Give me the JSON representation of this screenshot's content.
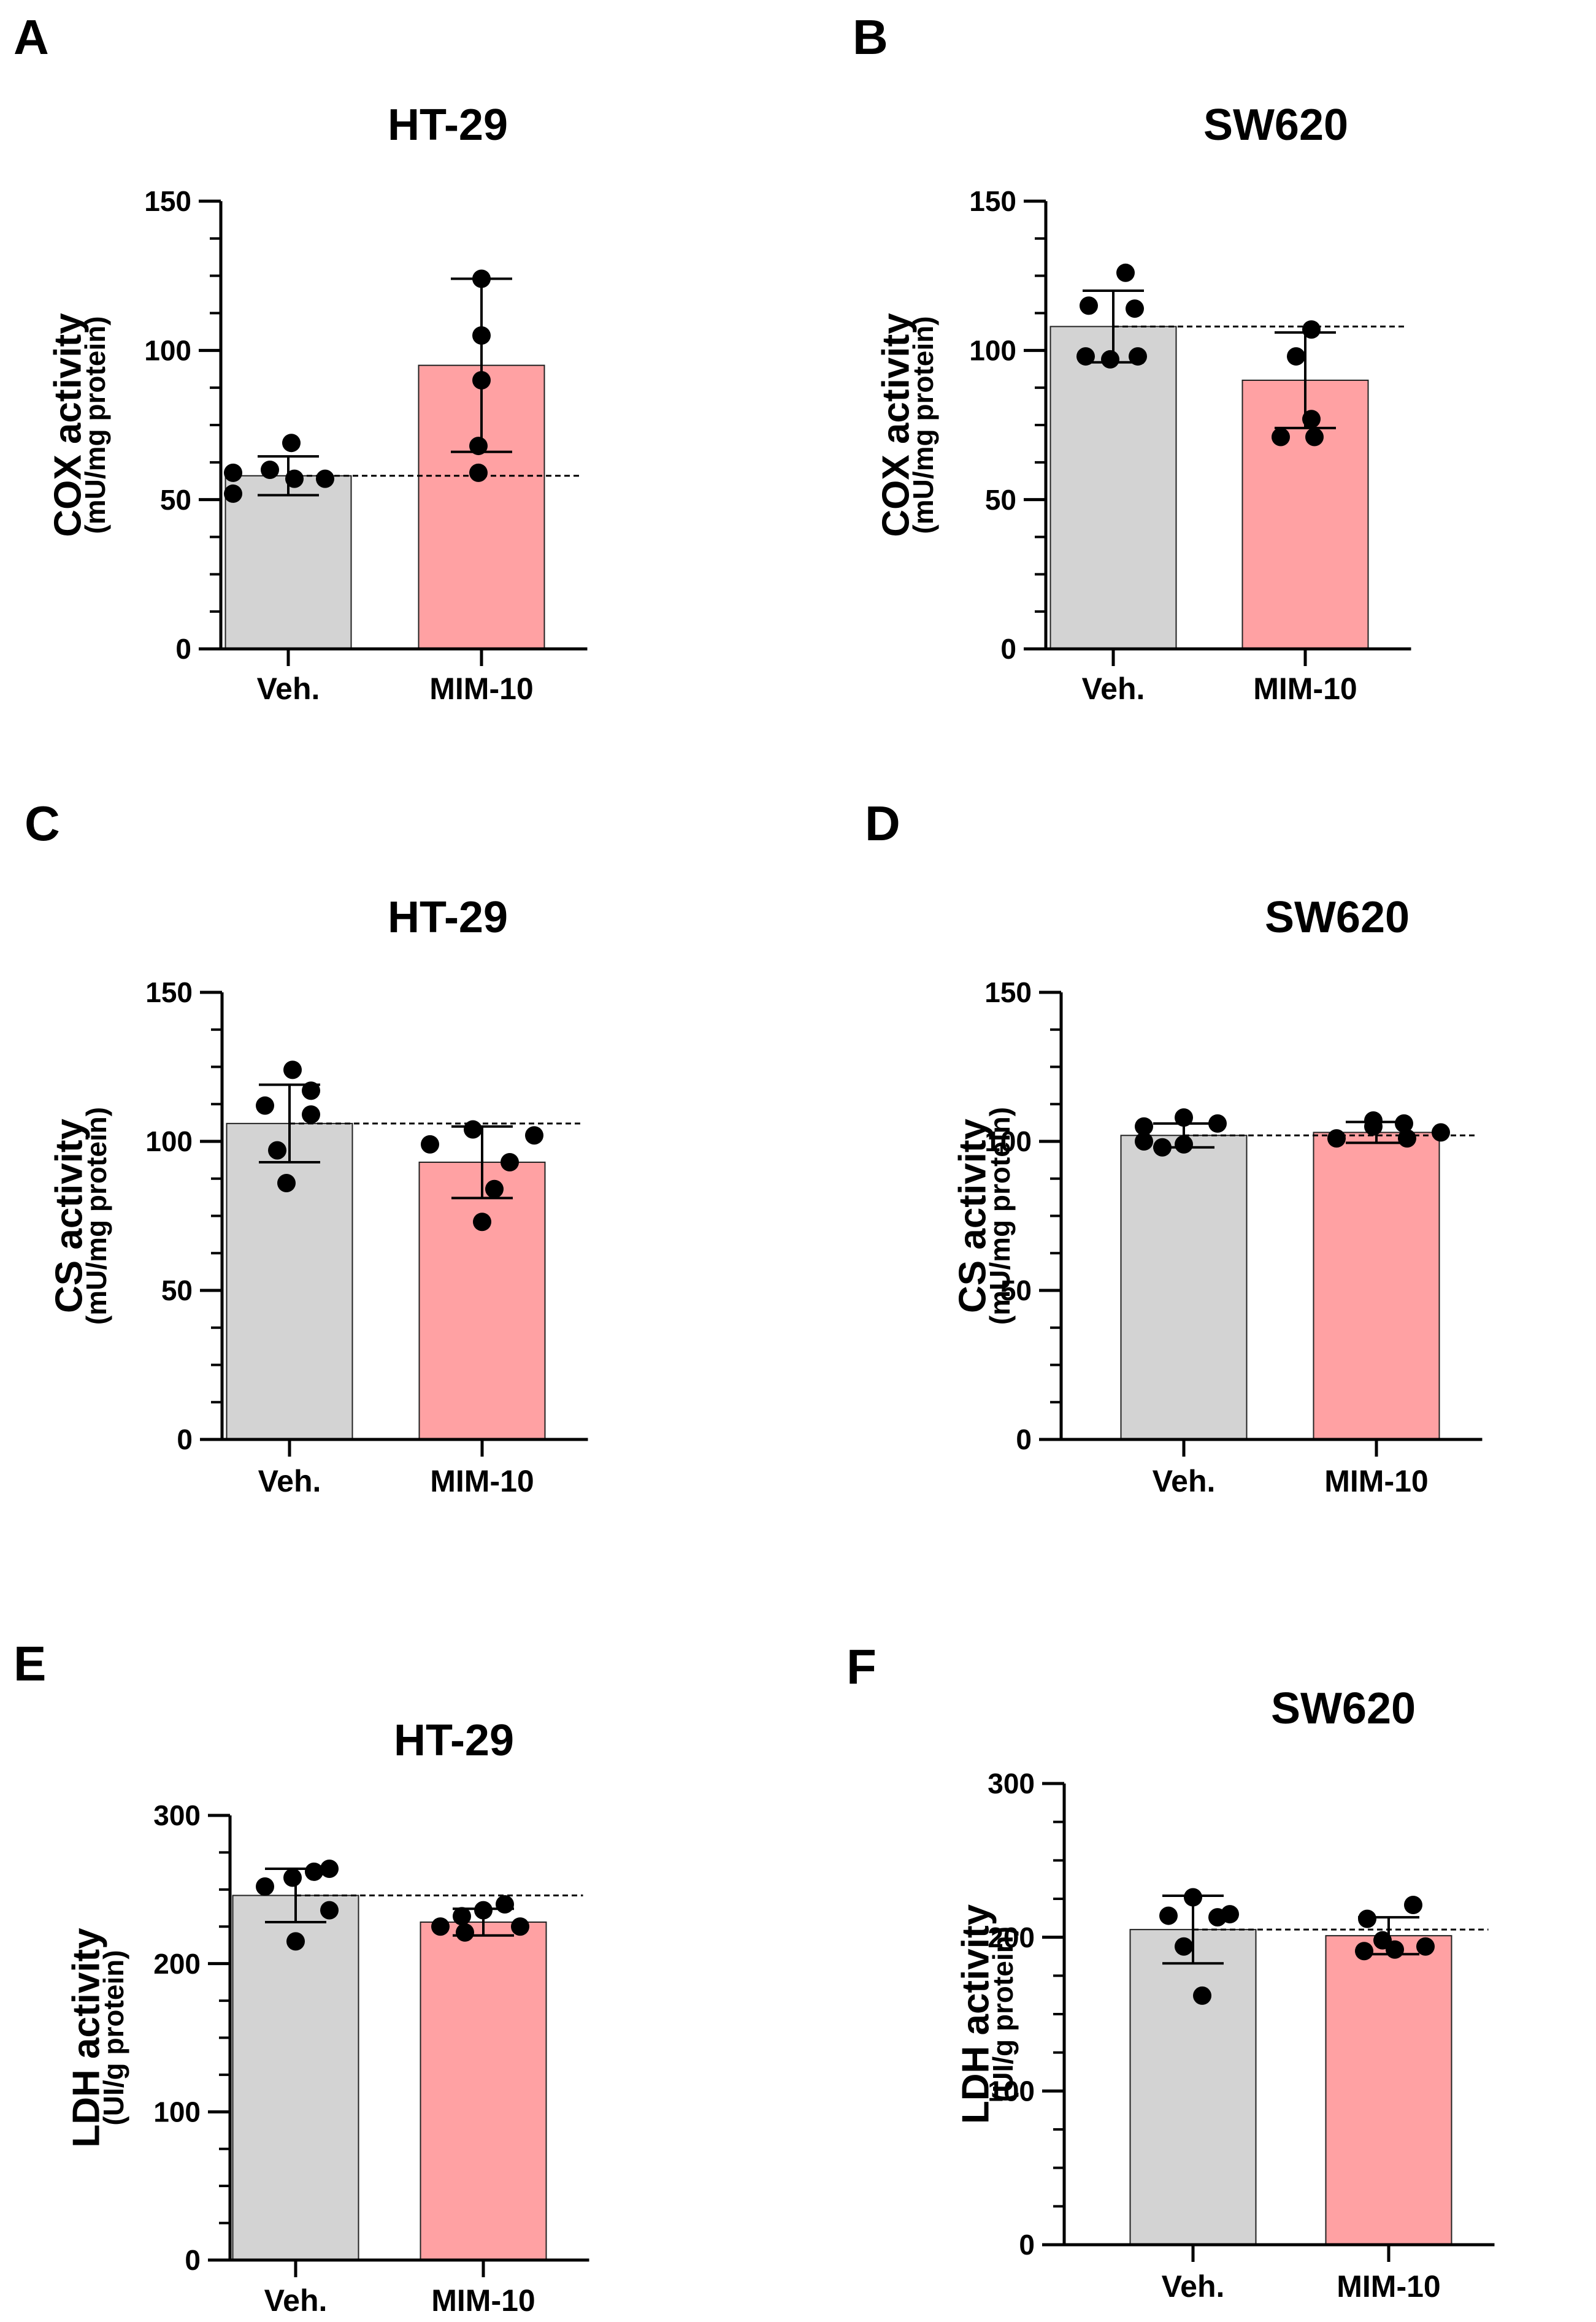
{
  "colors": {
    "veh": "#d3d3d3",
    "mim": "#ffa1a3",
    "axis": "#000000",
    "point": "#000000"
  },
  "chart_data": [
    {
      "panel": "A",
      "type": "bar",
      "title": "HT-29",
      "ylabel": "COX activity",
      "ylabel_unit": "(mU/mg protein)",
      "ylim": [
        0,
        150
      ],
      "yticks": [
        0,
        50,
        100,
        150
      ],
      "categories": [
        "Veh.",
        "MIM-10"
      ],
      "values": [
        58,
        95
      ],
      "sd": [
        6.5,
        29
      ],
      "reference_line": 58,
      "points": [
        [
          52,
          59,
          60,
          57,
          57,
          69
        ],
        [
          59,
          68,
          90,
          105,
          124
        ]
      ]
    },
    {
      "panel": "B",
      "type": "bar",
      "title": "SW620",
      "ylabel": "COX activity",
      "ylabel_unit": "(mU/mg protein)",
      "ylim": [
        0,
        150
      ],
      "yticks": [
        0,
        50,
        100,
        150
      ],
      "categories": [
        "Veh.",
        "MIM-10"
      ],
      "values": [
        108,
        90
      ],
      "sd": [
        12,
        16
      ],
      "reference_line": 108,
      "points": [
        [
          98,
          115,
          114,
          98,
          97,
          126
        ],
        [
          71,
          71,
          77,
          98,
          107
        ]
      ]
    },
    {
      "panel": "C",
      "type": "bar",
      "title": "HT-29",
      "ylabel": "CS activity",
      "ylabel_unit": "(mU/mg protein)",
      "ylim": [
        0,
        150
      ],
      "yticks": [
        0,
        50,
        100,
        150
      ],
      "categories": [
        "Veh.",
        "MIM-10"
      ],
      "values": [
        106,
        93
      ],
      "sd": [
        13,
        12
      ],
      "reference_line": 106,
      "points": [
        [
          112,
          97,
          86,
          117,
          109,
          124
        ],
        [
          99,
          104,
          73,
          84,
          93,
          102
        ]
      ]
    },
    {
      "panel": "D",
      "type": "bar",
      "title": "SW620",
      "ylabel": "CS activity",
      "ylabel_unit": "(mU/mg protein)",
      "ylim": [
        0,
        150
      ],
      "yticks": [
        0,
        50,
        100,
        150
      ],
      "categories": [
        "Veh.",
        "MIM-10"
      ],
      "values": [
        102,
        103
      ],
      "sd": [
        4,
        3.5
      ],
      "reference_line": 102,
      "points": [
        [
          100,
          105,
          98,
          108,
          99,
          106
        ],
        [
          101,
          105,
          107,
          101,
          106,
          103
        ]
      ]
    },
    {
      "panel": "E",
      "type": "bar",
      "title": "HT-29",
      "ylabel": "LDH activity",
      "ylabel_unit": "(UI/g protein)",
      "ylim": [
        0,
        300
      ],
      "yticks": [
        0,
        100,
        200,
        300
      ],
      "categories": [
        "Veh.",
        "MIM-10"
      ],
      "values": [
        246,
        228
      ],
      "sd": [
        18,
        9
      ],
      "reference_line": 246,
      "points": [
        [
          252,
          215,
          258,
          262,
          236,
          264
        ],
        [
          232,
          236,
          225,
          221,
          240,
          225
        ]
      ]
    },
    {
      "panel": "F",
      "type": "bar",
      "title": "SW620",
      "ylabel": "LDH activity",
      "ylabel_unit": "(UI/g protein)",
      "ylim": [
        0,
        300
      ],
      "yticks": [
        0,
        100,
        200,
        300
      ],
      "categories": [
        "Veh.",
        "MIM-10"
      ],
      "values": [
        205,
        201
      ],
      "sd": [
        22,
        12
      ],
      "reference_line": 205,
      "points": [
        [
          214,
          194,
          162,
          213,
          215,
          226
        ],
        [
          191,
          212,
          198,
          192,
          221,
          194
        ]
      ]
    }
  ]
}
